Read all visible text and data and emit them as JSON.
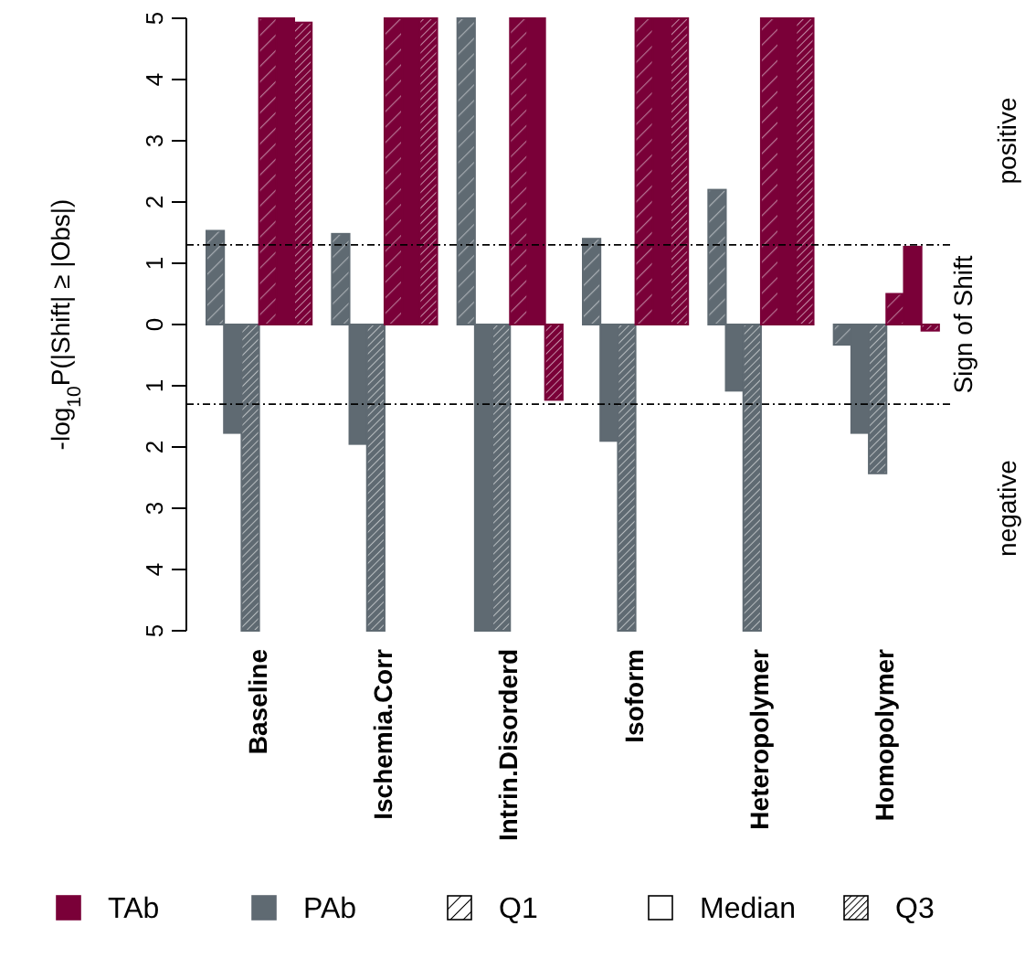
{
  "chart_data": {
    "type": "bar",
    "ylabel": "-log$_{10}$P(|Shift| ≥ |Obs|)",
    "y2label": "Sign of Shift",
    "annotations": [
      "positive",
      "negative",
      "Q1",
      "Median",
      "Q3"
    ],
    "categories": [
      "Baseline",
      "Ischemia.Corr",
      "Intrin.Disorderd",
      "Isoform",
      "Heteropolymer",
      "Homopolymer"
    ],
    "series": [
      {
        "color": "#5f6a72",
        "values": [
          1.53,
          1.48,
          5,
          1.4,
          2.2,
          -0.33
        ]
      },
      {
        "name": "PAb",
        "color": "#5f6a72",
        "values": [
          -1.77,
          -1.95,
          -5,
          -1.9,
          -1.08,
          -1.77
        ]
      },
      {
        "color": "#5f6a72",
        "values": [
          -5,
          -5,
          -5,
          -5,
          -5,
          -2.43
        ]
      },
      {
        "color": "#7a0038",
        "values": [
          5,
          5,
          5,
          5,
          5,
          0.5
        ]
      },
      {
        "name": "TAb",
        "color": "#7a0038",
        "values": [
          5,
          5,
          5,
          5,
          5,
          1.27
        ]
      },
      {
        "color": "#7a0038",
        "values": [
          4.93,
          5,
          -1.23,
          5,
          5,
          -0.1
        ]
      }
    ],
    "ylim": [
      -5,
      5
    ],
    "yticks": [
      {
        "value": -5,
        "label": "5"
      },
      {
        "value": -4,
        "label": "4"
      },
      {
        "value": -3,
        "label": "3"
      },
      {
        "value": -2,
        "label": "2"
      },
      {
        "value": -1,
        "label": "1"
      },
      0,
      1,
      2,
      3,
      4,
      5
    ],
    "ref_lines": [
      {
        "axis": "y",
        "value": 1.3,
        "line_style": "dashed"
      },
      {
        "axis": "y",
        "value": -1.3,
        "line_style": "dashed"
      }
    ],
    "legend": "bottom"
  }
}
